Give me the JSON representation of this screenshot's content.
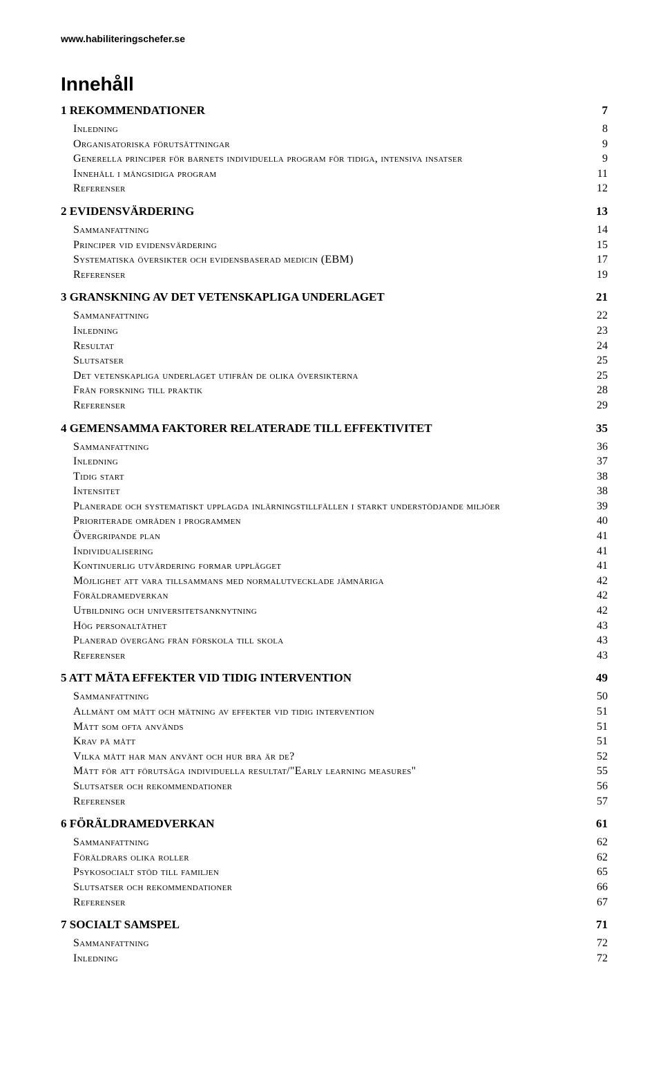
{
  "url": "www.habiliteringschefer.se",
  "title": "Innehåll",
  "sections": [
    {
      "heading": "1 REKOMMENDATIONER",
      "page": "7",
      "entries": [
        {
          "label": "Inledning",
          "page": "8"
        },
        {
          "label": "Organisatoriska förutsättningar",
          "page": "9"
        },
        {
          "label": "Generella principer för barnets individuella program för tidiga, intensiva insatser",
          "page": "9"
        },
        {
          "label": "Innehåll i mångsidiga program",
          "page": "11"
        },
        {
          "label": "Referenser",
          "page": "12"
        }
      ]
    },
    {
      "heading": "2 EVIDENSVÄRDERING",
      "page": "13",
      "entries": [
        {
          "label": "Sammanfattning",
          "page": "14"
        },
        {
          "label": "Principer vid evidensvärdering",
          "page": "15"
        },
        {
          "label": "Systematiska översikter och evidensbaserad medicin (EBM)",
          "page": "17"
        },
        {
          "label": "Referenser",
          "page": "19"
        }
      ]
    },
    {
      "heading": "3 GRANSKNING AV DET VETENSKAPLIGA UNDERLAGET",
      "page": "21",
      "entries": [
        {
          "label": "Sammanfattning",
          "page": "22"
        },
        {
          "label": "Inledning",
          "page": "23"
        },
        {
          "label": "Resultat",
          "page": "24"
        },
        {
          "label": "Slutsatser",
          "page": "25"
        },
        {
          "label": "Det vetenskapliga underlaget utifrån de olika översikterna",
          "page": "25"
        },
        {
          "label": "Från forskning till praktik",
          "page": "28"
        },
        {
          "label": "Referenser",
          "page": "29"
        }
      ]
    },
    {
      "heading": "4 GEMENSAMMA FAKTORER RELATERADE TILL EFFEKTIVITET",
      "page": "35",
      "entries": [
        {
          "label": "Sammanfattning",
          "page": "36"
        },
        {
          "label": "Inledning",
          "page": "37"
        },
        {
          "label": "Tidig start",
          "page": "38"
        },
        {
          "label": "Intensitet",
          "page": "38"
        },
        {
          "label": "Planerade och systematiskt upplagda inlärningstillfällen i starkt understödjande miljöer",
          "page": "39"
        },
        {
          "label": "Prioriterade områden i programmen",
          "page": "40"
        },
        {
          "label": "Övergripande plan",
          "page": "41"
        },
        {
          "label": "Individualisering",
          "page": "41"
        },
        {
          "label": "Kontinuerlig utvärdering formar upplägget",
          "page": "41"
        },
        {
          "label": "Möjlighet att vara tillsammans med normalutvecklade jämnåriga",
          "page": "42"
        },
        {
          "label": "Föräldramedverkan",
          "page": "42"
        },
        {
          "label": "Utbildning och universitetsanknytning",
          "page": "42"
        },
        {
          "label": "Hög personaltäthet",
          "page": "43"
        },
        {
          "label": "Planerad övergång från förskola till skola",
          "page": "43"
        },
        {
          "label": "Referenser",
          "page": "43"
        }
      ]
    },
    {
      "heading": "5 ATT MÄTA EFFEKTER  VID TIDIG INTERVENTION",
      "page": "49",
      "entries": [
        {
          "label": "Sammanfattning",
          "page": "50"
        },
        {
          "label": "Allmänt om mått och mätning av effekter vid tidig intervention",
          "page": "51"
        },
        {
          "label": "Mått som ofta används",
          "page": "51"
        },
        {
          "label": "Krav på mått",
          "page": "51"
        },
        {
          "label": "Vilka mått har man använt och hur bra är de?",
          "page": "52"
        },
        {
          "label": "Mått för att förutsäga individuella resultat/\"Early learning measures\"",
          "page": "55"
        },
        {
          "label": "Slutsatser och rekommendationer",
          "page": "56"
        },
        {
          "label": "Referenser",
          "page": "57"
        }
      ]
    },
    {
      "heading": "6 FÖRÄLDRAMEDVERKAN",
      "page": "61",
      "entries": [
        {
          "label": "Sammanfattning",
          "page": "62"
        },
        {
          "label": "Föräldrars olika roller",
          "page": "62"
        },
        {
          "label": "Psykosocialt stöd till familjen",
          "page": "65"
        },
        {
          "label": "Slutsatser och rekommendationer",
          "page": "66"
        },
        {
          "label": "Referenser",
          "page": "67"
        }
      ]
    },
    {
      "heading": "7 SOCIALT SAMSPEL",
      "page": "71",
      "entries": [
        {
          "label": "Sammanfattning",
          "page": "72"
        },
        {
          "label": "Inledning",
          "page": "72"
        }
      ]
    }
  ]
}
